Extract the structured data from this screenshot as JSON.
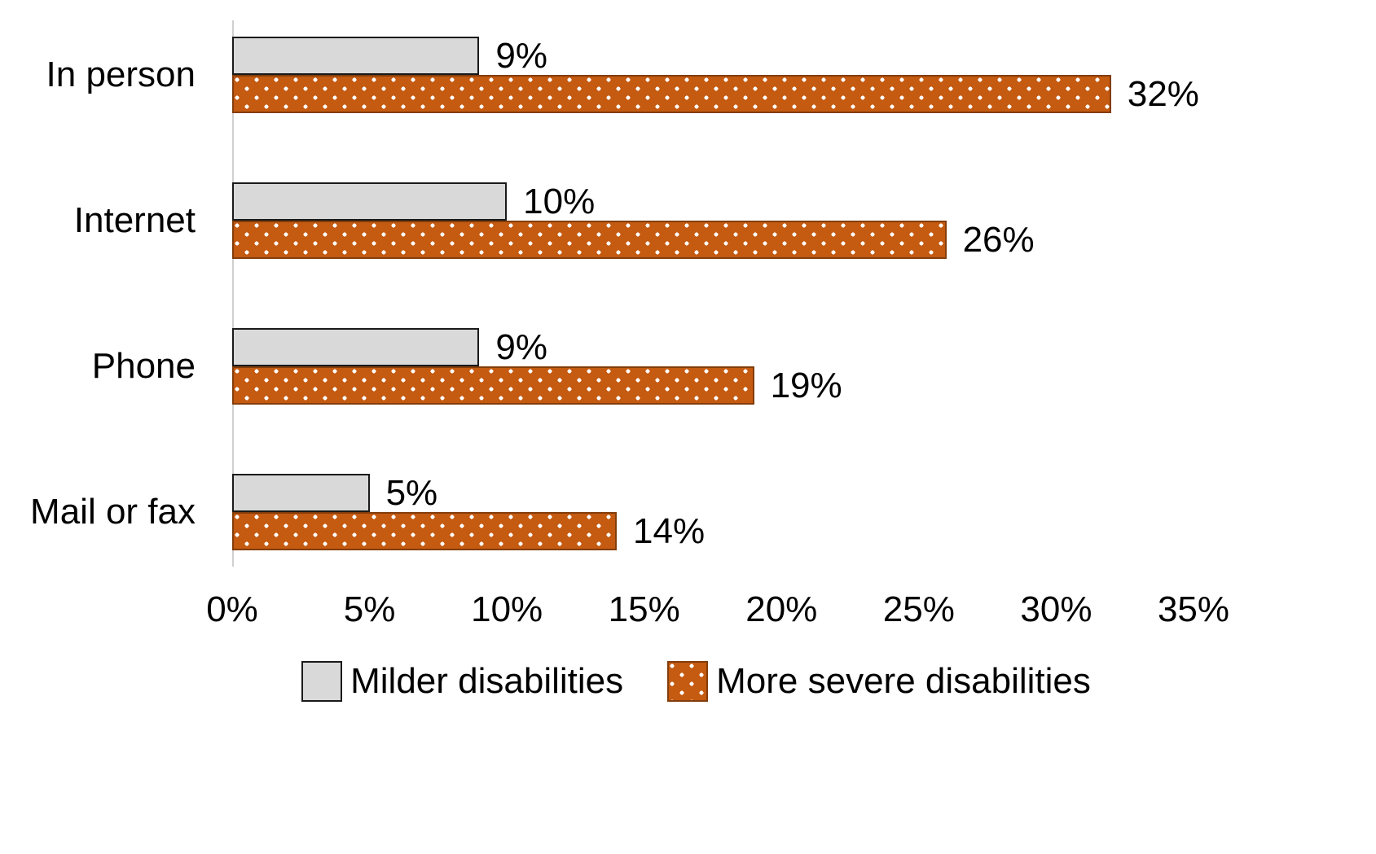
{
  "chart_data": {
    "type": "bar",
    "orientation": "horizontal",
    "title": "",
    "categories": [
      "In person",
      "Internet",
      "Phone",
      "Mail or fax"
    ],
    "series": [
      {
        "name": "Milder disabilities",
        "values": [
          9,
          10,
          9,
          5
        ],
        "labels": [
          "9%",
          "10%",
          "9%",
          "5%"
        ],
        "fill": "#d9d9d9",
        "pattern": "solid"
      },
      {
        "name": "More severe disabilities",
        "values": [
          32,
          26,
          19,
          14
        ],
        "labels": [
          "32%",
          "26%",
          "19%",
          "14%"
        ],
        "fill": "#c55a11",
        "pattern": "dotted-white"
      }
    ],
    "xlabel": "",
    "ylabel": "",
    "xlim": [
      0,
      35
    ],
    "x_ticks": [
      "0%",
      "5%",
      "10%",
      "15%",
      "20%",
      "25%",
      "30%",
      "35%"
    ],
    "grid": false,
    "legend_position": "bottom"
  }
}
